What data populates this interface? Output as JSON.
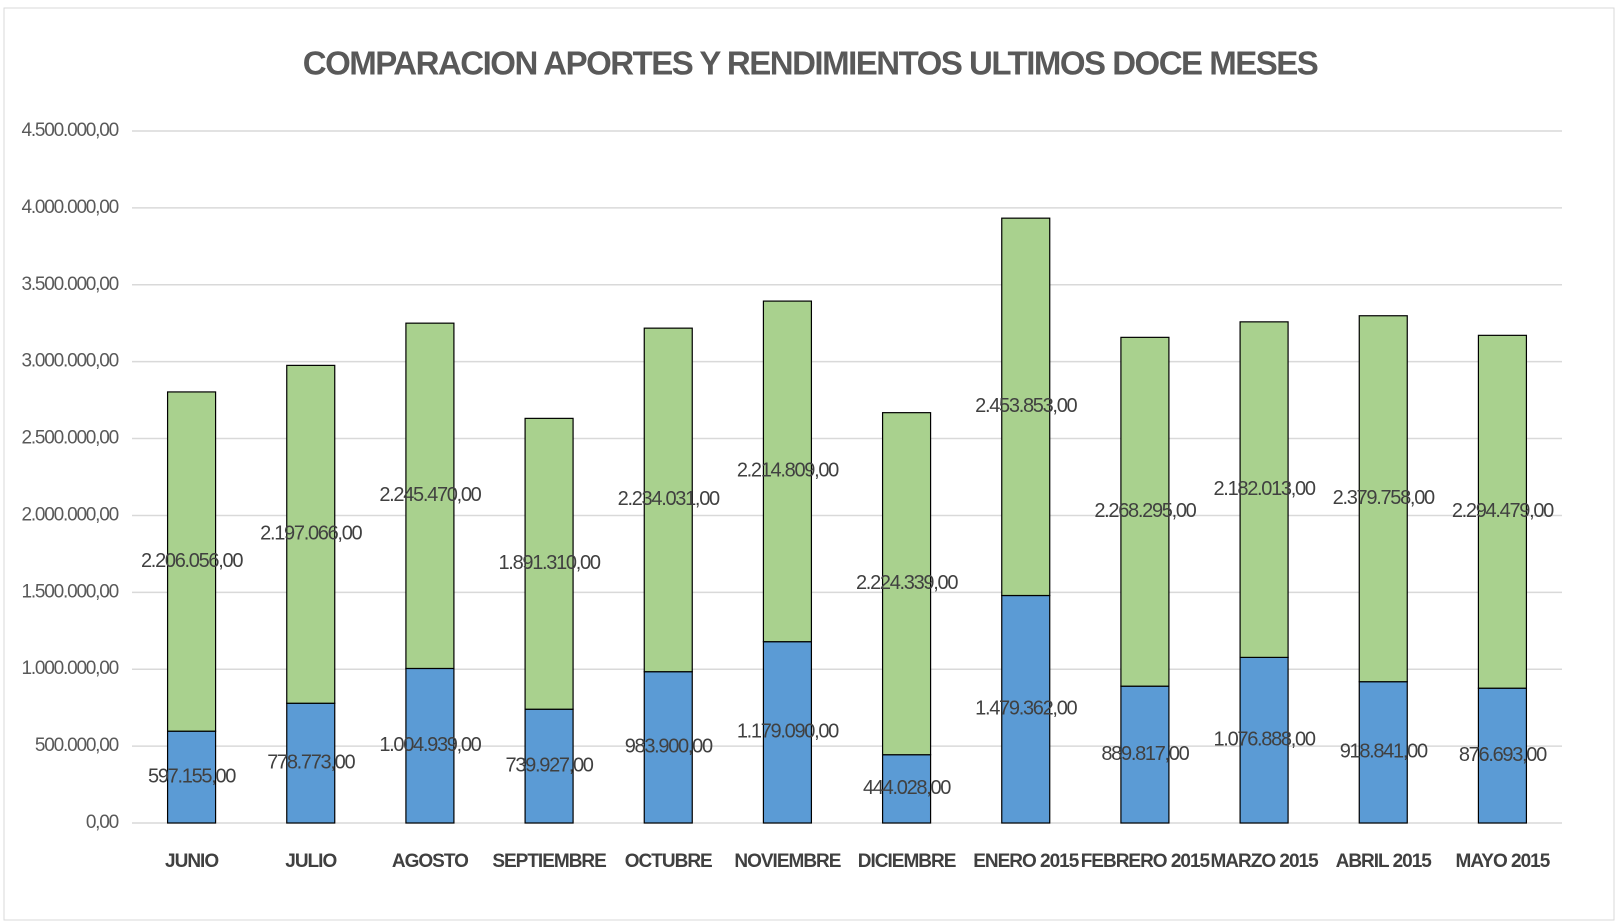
{
  "chart_data": {
    "type": "stacked_bar",
    "title": "COMPARACION APORTES Y RENDIMIENTOS ULTIMOS DOCE MESES",
    "categories": [
      "JUNIO",
      "JULIO",
      "AGOSTO",
      "SEPTIEMBRE",
      "OCTUBRE",
      "NOVIEMBRE",
      "DICIEMBRE",
      "ENERO 2015",
      "FEBRERO 2015",
      "MARZO 2015",
      "ABRIL 2015",
      "MAYO 2015"
    ],
    "series": [
      {
        "color": "#5b9bd5",
        "values": [
          597155,
          778773,
          1004939,
          739927,
          983900,
          1179090,
          444028,
          1479362,
          889817,
          1076888,
          918841,
          876693
        ],
        "value_labels": [
          "597.155,00",
          "778.773,00",
          "1.004.939,00",
          "739.927,00",
          "983.900,00",
          "1.179.090,00",
          "444.028,00",
          "1.479.362,00",
          "889.817,00",
          "1.076.888,00",
          "918.841,00",
          "876.693,00"
        ]
      },
      {
        "color": "#a9d18e",
        "values": [
          2206056,
          2197066,
          2245470,
          1891310,
          2234031,
          2214809,
          2224339,
          2453853,
          2268295,
          2182013,
          2379758,
          2294479
        ],
        "value_labels": [
          "2.206.056,00",
          "2.197.066,00",
          "2.245.470,00",
          "1.891.310,00",
          "2.234.031,00",
          "2.214.809,00",
          "2.224.339,00",
          "2.453.853,00",
          "2.268.295,00",
          "2.182.013,00",
          "2.379.758,00",
          "2.294.479,00"
        ]
      }
    ],
    "ylim": [
      0,
      4500000
    ],
    "yticks": [
      {
        "value": 0,
        "label": "0,00"
      },
      {
        "value": 500000,
        "label": "500.000,00"
      },
      {
        "value": 1000000,
        "label": "1.000.000,00"
      },
      {
        "value": 1500000,
        "label": "1.500.000,00"
      },
      {
        "value": 2000000,
        "label": "2.000.000,00"
      },
      {
        "value": 2500000,
        "label": "2.500.000,00"
      },
      {
        "value": 3000000,
        "label": "3.000.000,00"
      },
      {
        "value": 3500000,
        "label": "3.500.000,00"
      },
      {
        "value": 4000000,
        "label": "4.000.000,00"
      },
      {
        "value": 4500000,
        "label": "4.500.000,00"
      }
    ],
    "grid": true
  }
}
